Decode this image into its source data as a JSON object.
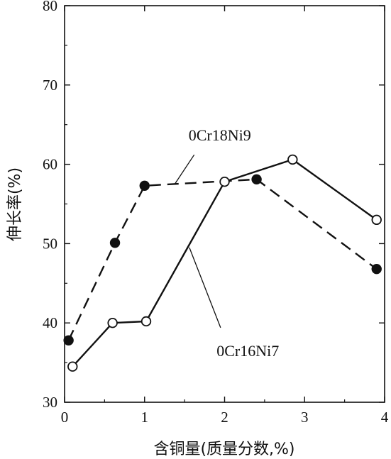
{
  "chart_data": {
    "type": "line",
    "xlabel": "含铜量(质量分数,%)",
    "ylabel": "伸长率(%)",
    "xlim": [
      0,
      4
    ],
    "ylim": [
      30,
      80
    ],
    "xticks": [
      0,
      1,
      2,
      3,
      4
    ],
    "yticks": [
      30,
      40,
      50,
      60,
      70,
      80
    ],
    "xtick_labels": [
      "0",
      "1",
      "2",
      "3",
      "4"
    ],
    "ytick_labels": [
      "30",
      "40",
      "50",
      "60",
      "70",
      "80"
    ],
    "grid": false,
    "series": [
      {
        "name": "0Cr18Ni9",
        "line_style": "dashed",
        "marker": "filled-circle",
        "x": [
          0.05,
          0.63,
          1.0,
          2.4,
          3.9
        ],
        "y": [
          37.8,
          50.1,
          57.3,
          58.1,
          46.8
        ]
      },
      {
        "name": "0Cr16Ni7",
        "line_style": "solid",
        "marker": "open-circle",
        "x": [
          0.1,
          0.6,
          1.02,
          2.0,
          2.85,
          3.9
        ],
        "y": [
          34.5,
          40.0,
          40.2,
          57.8,
          60.6,
          53.0
        ]
      }
    ]
  }
}
